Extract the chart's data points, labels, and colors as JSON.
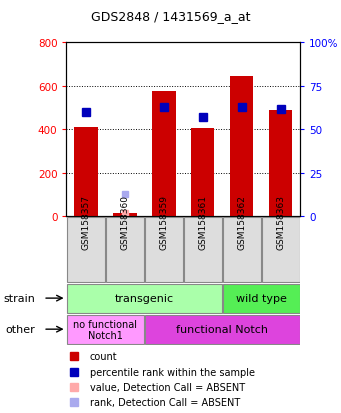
{
  "title": "GDS2848 / 1431569_a_at",
  "samples": [
    "GSM158357",
    "GSM158360",
    "GSM158359",
    "GSM158361",
    "GSM158362",
    "GSM158363"
  ],
  "counts": [
    410,
    15,
    575,
    405,
    645,
    490
  ],
  "percentile_ranks": [
    60,
    null,
    63,
    57,
    63,
    62
  ],
  "absent_value": [
    null,
    15,
    null,
    null,
    null,
    null
  ],
  "absent_rank": [
    null,
    13,
    null,
    null,
    null,
    null
  ],
  "ylim_left": [
    0,
    800
  ],
  "ylim_right": [
    0,
    100
  ],
  "yticks_left": [
    0,
    200,
    400,
    600,
    800
  ],
  "yticks_right": [
    0,
    25,
    50,
    75,
    100
  ],
  "yticklabels_right": [
    "0",
    "25",
    "50",
    "75",
    "100%"
  ],
  "bar_color": "#cc0000",
  "dot_color_present": "#0000bb",
  "dot_color_absent_val": "#ffaaaa",
  "dot_color_absent_rank": "#aaaaee",
  "strain_transgenic_color": "#aaffaa",
  "strain_wildtype_color": "#55ee55",
  "other_nofunc_color": "#ff99ff",
  "other_func_color": "#dd44dd",
  "strain_transgenic_text": "transgenic",
  "strain_wildtype_text": "wild type",
  "other_nofunc_text": "no functional\nNotch1",
  "other_func_text": "functional Notch",
  "legend_items": [
    {
      "label": "count",
      "color": "#cc0000",
      "marker": "s"
    },
    {
      "label": "percentile rank within the sample",
      "color": "#0000bb",
      "marker": "s"
    },
    {
      "label": "value, Detection Call = ABSENT",
      "color": "#ffaaaa",
      "marker": "s"
    },
    {
      "label": "rank, Detection Call = ABSENT",
      "color": "#aaaaee",
      "marker": "s"
    }
  ]
}
